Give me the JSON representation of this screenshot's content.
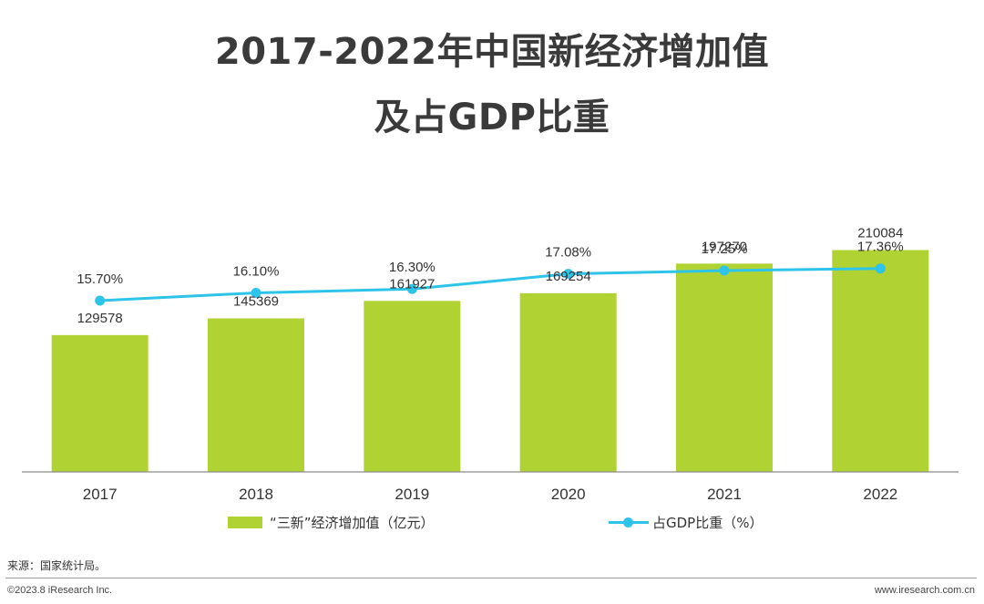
{
  "title_line1": "2017-2022年中国新经济增加值",
  "title_line2": "及占GDP比重",
  "chart_data": {
    "type": "bar",
    "categories": [
      "2017",
      "2018",
      "2019",
      "2020",
      "2021",
      "2022"
    ],
    "series": [
      {
        "name": "“三新”经济增加值（亿元）",
        "type": "bar",
        "values": [
          129578,
          145369,
          161927,
          169254,
          197270,
          210084
        ],
        "labels": [
          "129578",
          "145369",
          "161927",
          "169254",
          "197270",
          "210084"
        ],
        "color": "#b0d232"
      },
      {
        "name": "占GDP比重（%）",
        "type": "line",
        "values": [
          15.7,
          16.1,
          16.3,
          17.08,
          17.25,
          17.36
        ],
        "labels": [
          "15.70%",
          "16.10%",
          "16.30%",
          "17.08%",
          "17.25%",
          "17.36%"
        ],
        "color": "#2ec4ea"
      }
    ],
    "grid": false,
    "legend_position": "bottom"
  },
  "source": "来源：国家统计局。",
  "footer_left": "©2023.8 iResearch Inc.",
  "footer_right": "www.iresearch.com.cn"
}
